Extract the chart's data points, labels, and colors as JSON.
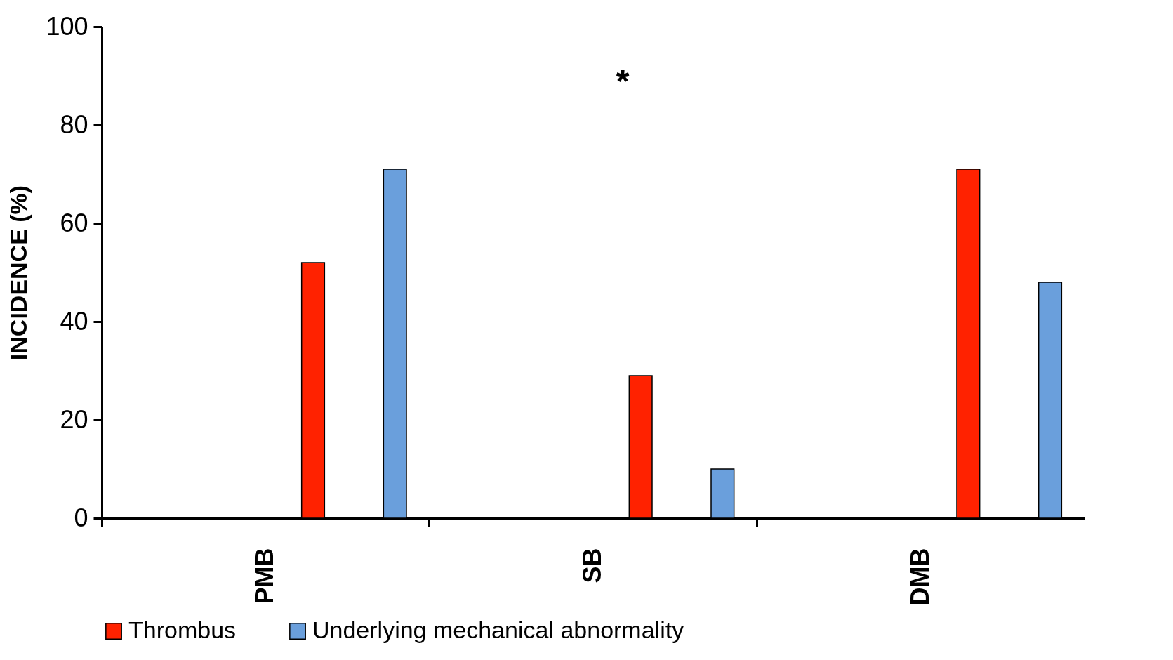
{
  "chart_data": {
    "type": "bar",
    "ylabel": "INCIDENCE (%)",
    "categories": [
      "PMB",
      "SB",
      "DMB"
    ],
    "series": [
      {
        "name": "Thrombus",
        "color": "#ff2200",
        "values": [
          52,
          29,
          71
        ]
      },
      {
        "name": "Underlying mechanical abnormality",
        "color": "#6a9fdc",
        "values": [
          71,
          10,
          48
        ]
      }
    ],
    "ylim": [
      0,
      100
    ],
    "yticks": [
      0,
      20,
      40,
      60,
      80,
      100
    ],
    "grid": false,
    "legend": "bottom",
    "annotations": [
      "*"
    ]
  }
}
